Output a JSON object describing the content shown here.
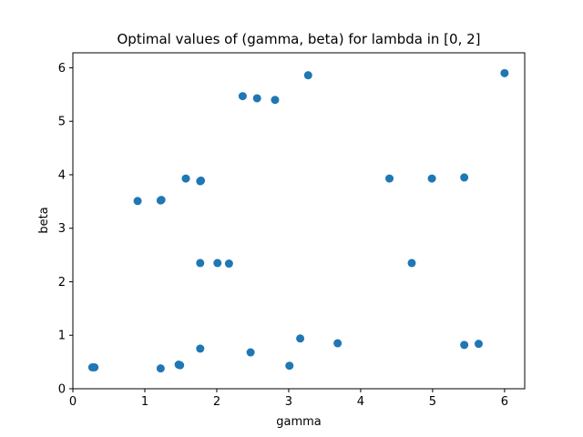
{
  "chart_data": {
    "type": "scatter",
    "title": "Optimal values of (gamma, beta) for lambda in [0, 2]",
    "xlabel": "gamma",
    "ylabel": "beta",
    "xlim": [
      0,
      6.28
    ],
    "ylim": [
      0,
      6.28
    ],
    "xticks": [
      0,
      1,
      2,
      3,
      4,
      5,
      6
    ],
    "yticks": [
      0,
      1,
      2,
      3,
      4,
      5,
      6
    ],
    "grid": false,
    "marker_color": "#1f77b4",
    "series": [
      {
        "points": [
          {
            "x": 0.27,
            "y": 0.4
          },
          {
            "x": 0.3,
            "y": 0.4
          },
          {
            "x": 1.22,
            "y": 0.38
          },
          {
            "x": 1.47,
            "y": 0.45
          },
          {
            "x": 1.49,
            "y": 0.44
          },
          {
            "x": 1.77,
            "y": 0.75
          },
          {
            "x": 2.47,
            "y": 0.68
          },
          {
            "x": 3.01,
            "y": 0.43
          },
          {
            "x": 3.16,
            "y": 0.94
          },
          {
            "x": 3.68,
            "y": 0.85
          },
          {
            "x": 5.44,
            "y": 0.82
          },
          {
            "x": 5.64,
            "y": 0.84
          },
          {
            "x": 1.77,
            "y": 2.35
          },
          {
            "x": 2.01,
            "y": 2.35
          },
          {
            "x": 2.17,
            "y": 2.34
          },
          {
            "x": 4.71,
            "y": 2.35
          },
          {
            "x": 0.9,
            "y": 3.51
          },
          {
            "x": 1.22,
            "y": 3.52
          },
          {
            "x": 1.23,
            "y": 3.53
          },
          {
            "x": 1.57,
            "y": 3.93
          },
          {
            "x": 1.77,
            "y": 3.88
          },
          {
            "x": 1.78,
            "y": 3.89
          },
          {
            "x": 4.4,
            "y": 3.93
          },
          {
            "x": 4.99,
            "y": 3.93
          },
          {
            "x": 5.44,
            "y": 3.95
          },
          {
            "x": 2.36,
            "y": 5.47
          },
          {
            "x": 2.56,
            "y": 5.43
          },
          {
            "x": 2.81,
            "y": 5.4
          },
          {
            "x": 3.27,
            "y": 5.86
          },
          {
            "x": 6.0,
            "y": 5.9
          }
        ]
      }
    ]
  }
}
